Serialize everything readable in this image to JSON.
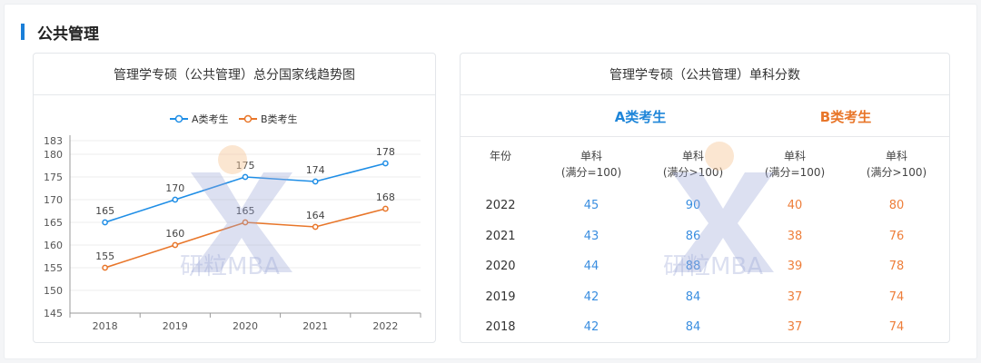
{
  "section": {
    "title": "公共管理"
  },
  "left_card": {
    "title": "管理学专硕（公共管理）总分国家线趋势图"
  },
  "right_card": {
    "title": "管理学专硕（公共管理）单科分数",
    "group_a": "A类考生",
    "group_b": "B类考生",
    "headers": [
      {
        "l1": "年份",
        "l2": ""
      },
      {
        "l1": "单科",
        "l2": "(满分=100)"
      },
      {
        "l1": "单科",
        "l2": "(满分>100)"
      },
      {
        "l1": "单科",
        "l2": "(满分=100)"
      },
      {
        "l1": "单科",
        "l2": "(满分>100)"
      }
    ],
    "rows": [
      {
        "year": "2022",
        "a1": "45",
        "a2": "90",
        "b1": "40",
        "b2": "80"
      },
      {
        "year": "2021",
        "a1": "43",
        "a2": "86",
        "b1": "38",
        "b2": "76"
      },
      {
        "year": "2020",
        "a1": "44",
        "a2": "88",
        "b1": "39",
        "b2": "78"
      },
      {
        "year": "2019",
        "a1": "42",
        "a2": "84",
        "b1": "37",
        "b2": "74"
      },
      {
        "year": "2018",
        "a1": "42",
        "a2": "84",
        "b1": "37",
        "b2": "74"
      }
    ]
  },
  "watermark": {
    "text": "研粒MBA",
    "mark": "X"
  },
  "colors": {
    "accent": "#1a7fd8",
    "series_a": "#1f8ee6",
    "series_b": "#e8762a"
  },
  "chart_data": {
    "type": "line",
    "title": "管理学专硕（公共管理）总分国家线趋势图",
    "x": [
      "2018",
      "2019",
      "2020",
      "2021",
      "2022"
    ],
    "series": [
      {
        "name": "A类考生",
        "values": [
          165,
          170,
          175,
          174,
          178
        ],
        "color": "#1f8ee6"
      },
      {
        "name": "B类考生",
        "values": [
          155,
          160,
          165,
          164,
          168
        ],
        "color": "#e8762a"
      }
    ],
    "yticks": [
      145,
      150,
      155,
      160,
      165,
      170,
      175,
      180,
      183
    ],
    "ylim": [
      145,
      183
    ],
    "grid": true,
    "legend": "top-center"
  }
}
